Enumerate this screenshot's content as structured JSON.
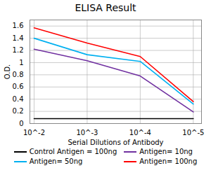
{
  "chart_data": {
    "type": "line",
    "title": "ELISA Result",
    "xlabel": "Serial Dilutions of Antibody",
    "ylabel": "O.D.",
    "x": [
      0.01,
      0.001,
      0.0001,
      1e-05
    ],
    "series": [
      {
        "name": "Control Antigen = 100ng",
        "color": "#000000",
        "values": [
          0.08,
          0.08,
          0.08,
          0.08
        ]
      },
      {
        "name": "Antigen= 10ng",
        "color": "#7030a0",
        "values": [
          1.22,
          1.03,
          0.78,
          0.19
        ]
      },
      {
        "name": "Antigen= 50ng",
        "color": "#00b0f0",
        "values": [
          1.4,
          1.13,
          1.02,
          0.32
        ]
      },
      {
        "name": "Antigen= 100ng",
        "color": "#ff0000",
        "values": [
          1.57,
          1.32,
          1.1,
          0.36
        ]
      }
    ],
    "xlim": [
      0.012,
      7e-06
    ],
    "ylim": [
      0,
      1.7
    ],
    "xticks": [
      {
        "value": 0.01,
        "label": "10^-2"
      },
      {
        "value": 0.001,
        "label": "10^-3"
      },
      {
        "value": 0.0001,
        "label": "10^-4"
      },
      {
        "value": 1e-05,
        "label": "10^-5"
      }
    ],
    "yticks": [
      0,
      0.2,
      0.4,
      0.6,
      0.8,
      1.0,
      1.2,
      1.4,
      1.6
    ],
    "log": "x",
    "grid": true,
    "legend": "bottom"
  }
}
